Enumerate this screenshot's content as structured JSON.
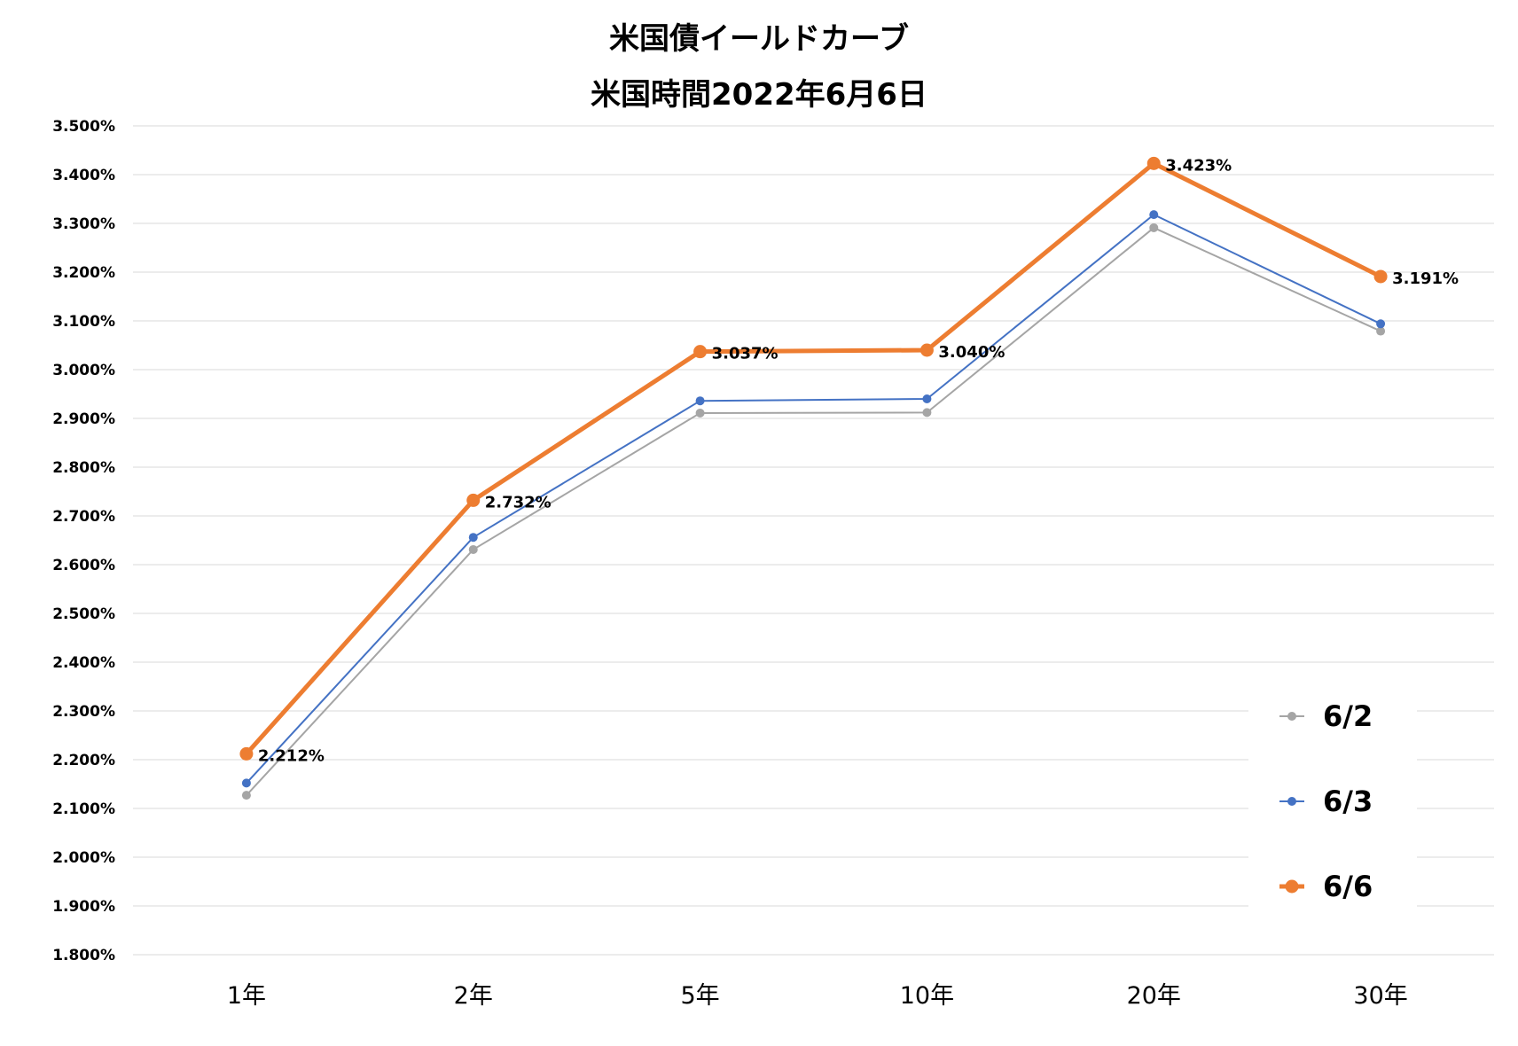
{
  "chart_data": {
    "type": "line",
    "title": "米国債イールドカーブ",
    "subtitle": "米国時間2022年6月6日",
    "categories": [
      "1年",
      "2年",
      "5年",
      "10年",
      "20年",
      "30年"
    ],
    "ylim": [
      1.8,
      3.5
    ],
    "y_ticks": [
      "1.800%",
      "1.900%",
      "2.000%",
      "2.100%",
      "2.200%",
      "2.300%",
      "2.400%",
      "2.500%",
      "2.600%",
      "2.700%",
      "2.800%",
      "2.900%",
      "3.000%",
      "3.100%",
      "3.200%",
      "3.300%",
      "3.400%",
      "3.500%"
    ],
    "y_tick_values": [
      1.8,
      1.9,
      2.0,
      2.1,
      2.2,
      2.3,
      2.4,
      2.5,
      2.6,
      2.7,
      2.8,
      2.9,
      3.0,
      3.1,
      3.2,
      3.3,
      3.4,
      3.5
    ],
    "grid": "horizontal",
    "legend_position": "bottom-right",
    "series": [
      {
        "name": "6/2",
        "color": "#a5a5a5",
        "values": [
          2.127,
          2.631,
          2.911,
          2.912,
          3.291,
          3.079
        ],
        "data_labels": []
      },
      {
        "name": "6/3",
        "color": "#4472c4",
        "values": [
          2.152,
          2.656,
          2.936,
          2.94,
          3.318,
          3.094
        ],
        "data_labels": []
      },
      {
        "name": "6/6",
        "color": "#ed7d31",
        "values": [
          2.212,
          2.732,
          3.037,
          3.04,
          3.423,
          3.191
        ],
        "data_labels": [
          "2.212%",
          "2.732%",
          "3.037%",
          "3.040%",
          "3.423%",
          "3.191%"
        ]
      }
    ]
  }
}
